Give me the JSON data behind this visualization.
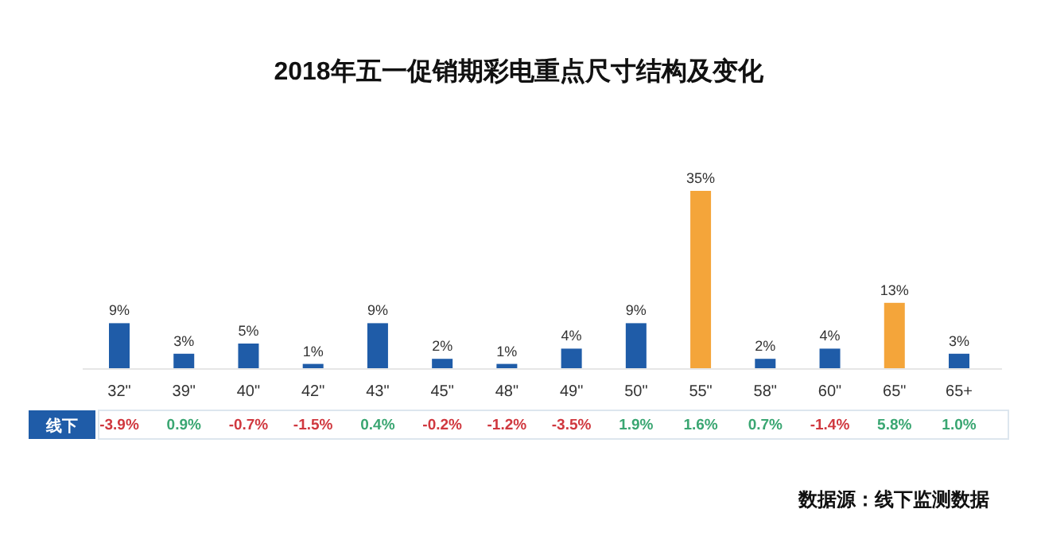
{
  "chart_data": {
    "type": "bar",
    "title": "2018年五一促销期彩电重点尺寸结构及变化",
    "categories": [
      "32\"",
      "39\"",
      "40\"",
      "42\"",
      "43\"",
      "45\"",
      "48\"",
      "49\"",
      "50\"",
      "55\"",
      "58\"",
      "60\"",
      "65\"",
      "65+"
    ],
    "values": [
      9,
      3,
      5,
      1,
      9,
      2,
      1,
      4,
      9,
      35,
      2,
      4,
      13,
      3
    ],
    "value_labels": [
      "9%",
      "3%",
      "5%",
      "1%",
      "9%",
      "2%",
      "1%",
      "4%",
      "9%",
      "35%",
      "2%",
      "4%",
      "13%",
      "3%"
    ],
    "colors": [
      "#1f5ca8",
      "#1f5ca8",
      "#1f5ca8",
      "#1f5ca8",
      "#1f5ca8",
      "#1f5ca8",
      "#1f5ca8",
      "#1f5ca8",
      "#1f5ca8",
      "#f4a53a",
      "#1f5ca8",
      "#1f5ca8",
      "#f4a53a",
      "#1f5ca8"
    ],
    "annotations": [
      "线下",
      "-3.9%",
      "0.9%",
      "-0.7%",
      "-1.5%",
      "0.4%",
      "-0.2%",
      "-1.2%",
      "-3.5%",
      "1.9%",
      "1.6%",
      "0.7%",
      "-1.4%",
      "5.8%",
      "1.0%",
      "数据源：线下监测数据"
    ]
  }
}
